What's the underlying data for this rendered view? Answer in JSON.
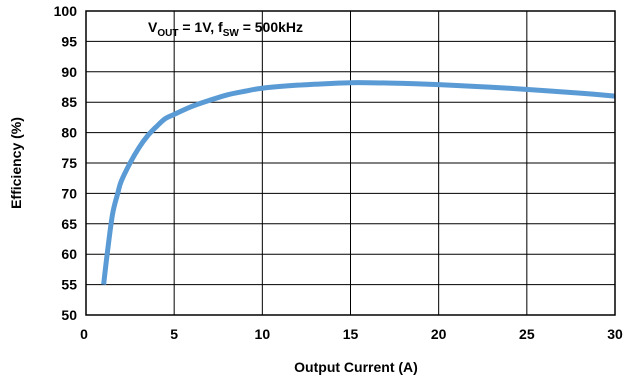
{
  "chart_data": {
    "type": "line",
    "xlabel": "Output Current (A)",
    "ylabel": "Efficiency (%)",
    "xlim": [
      0,
      30
    ],
    "ylim": [
      50,
      100
    ],
    "x_ticks": [
      "0",
      "5",
      "10",
      "15",
      "20",
      "25",
      "30"
    ],
    "y_ticks": [
      "50",
      "55",
      "60",
      "65",
      "70",
      "75",
      "80",
      "85",
      "90",
      "95",
      "100"
    ],
    "grid": true,
    "annotation": {
      "v": "V",
      "v_sub": "OUT",
      "mid": " = 1V, f",
      "f_sub": "SW",
      "tail": " = 500kHz"
    },
    "series": [
      {
        "color": "#5b9bd5",
        "x": [
          1.0,
          1.2,
          1.5,
          1.8,
          2.0,
          2.5,
          3.0,
          3.5,
          4.0,
          4.5,
          5.0,
          6.0,
          7.0,
          8.0,
          9.0,
          10.0,
          12.0,
          14.0,
          15.0,
          16.0,
          18.0,
          20.0,
          22.0,
          24.0,
          26.0,
          28.0,
          30.0
        ],
        "y": [
          55.0,
          60.0,
          66.5,
          70.0,
          72.0,
          75.0,
          77.5,
          79.5,
          81.0,
          82.3,
          83.0,
          84.3,
          85.3,
          86.2,
          86.8,
          87.3,
          87.8,
          88.1,
          88.2,
          88.2,
          88.1,
          87.9,
          87.6,
          87.3,
          86.9,
          86.5,
          86.0
        ]
      }
    ]
  }
}
